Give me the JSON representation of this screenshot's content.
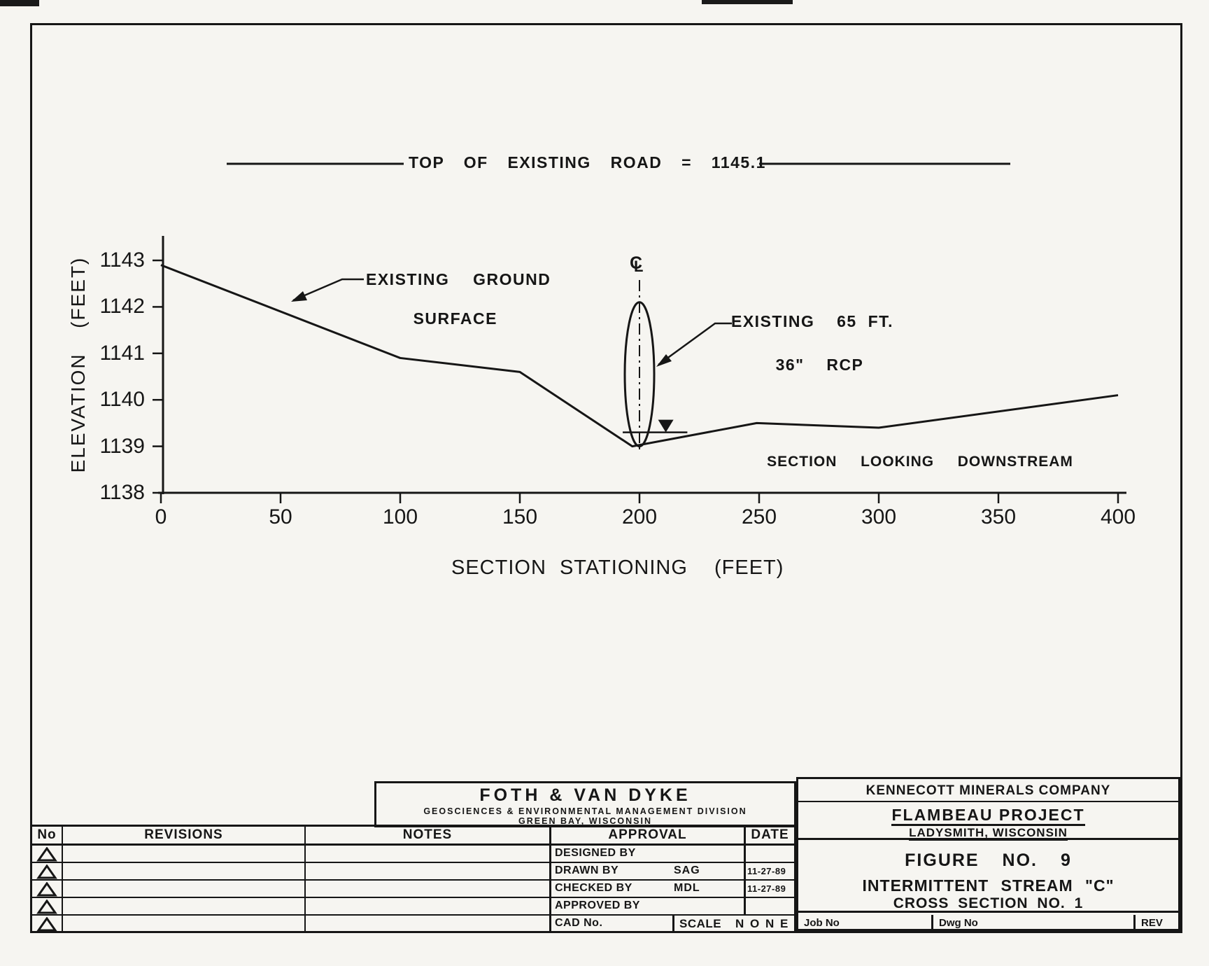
{
  "chart_data": {
    "type": "line",
    "title": "",
    "xlabel": "SECTION STATIONING  (FEET)",
    "ylabel": "ELEVATION  (FEET)",
    "x_ticks": [
      0,
      50,
      100,
      150,
      200,
      250,
      300,
      350,
      400
    ],
    "y_ticks": [
      1138,
      1139,
      1140,
      1141,
      1142,
      1143
    ],
    "xlim": [
      0,
      400
    ],
    "ylim": [
      1138,
      1143.5
    ],
    "grid": false,
    "series": [
      {
        "name": "EXISTING GROUND SURFACE",
        "x": [
          0,
          100,
          150,
          197,
          249,
          300,
          400
        ],
        "y": [
          1142.9,
          1140.9,
          1140.6,
          1139.0,
          1139.5,
          1139.4,
          1140.1
        ]
      }
    ],
    "water_surface": {
      "elevation": 1139.3,
      "station_start": 193,
      "station_end": 220,
      "marker_station": 211
    },
    "culvert": {
      "station": 200,
      "invert_elevation": 1139.0,
      "top_elevation": 1142.1,
      "label": "EXISTING 65 FT. 36\" RCP"
    },
    "annotations": {
      "road": "TOP  OF  EXISTING  ROAD  =  1145.1",
      "ground_label_line1": "EXISTING  GROUND",
      "ground_label_line2": "SURFACE",
      "rcp_label_line1": "EXISTING  65 FT.",
      "rcp_label_line2": "36\"  RCP",
      "view_note": "SECTION  LOOKING  DOWNSTREAM",
      "centerline_parts": [
        "C",
        "L"
      ]
    }
  },
  "title_block": {
    "firm": {
      "name": "FOTH  &  VAN  DYKE",
      "division": "GEOSCIENCES  &  ENVIRONMENTAL  MANAGEMENT  DIVISION",
      "location": "GREEN  BAY, WISCONSIN"
    },
    "headers": {
      "no": "No",
      "revisions": "REVISIONS",
      "notes": "NOTES",
      "approval": "APPROVAL",
      "date": "DATE"
    },
    "approval_rows": [
      {
        "label": "DESIGNED BY",
        "value": "",
        "date": ""
      },
      {
        "label": "DRAWN BY",
        "value": "SAG",
        "date": "11-27-89"
      },
      {
        "label": "CHECKED BY",
        "value": "MDL",
        "date": "11-27-89"
      },
      {
        "label": "APPROVED BY",
        "value": "",
        "date": ""
      }
    ],
    "cad_row": {
      "label": "CAD No.",
      "scale_label": "SCALE",
      "scale_value": "N O N E"
    },
    "company": "KENNECOTT MINERALS COMPANY",
    "project": "FLAMBEAU PROJECT",
    "project_location": "LADYSMITH, WISCONSIN",
    "figure": "FIGURE   NO. 9",
    "figure_title1": "INTERMITTENT  STREAM  \"C\"",
    "figure_title2": "CROSS  SECTION  NO. 1",
    "footer": {
      "job": "Job No",
      "dwg": "Dwg No",
      "rev": "REV"
    }
  },
  "colors": {
    "ink": "#161616",
    "paper": "#f6f5f1"
  }
}
